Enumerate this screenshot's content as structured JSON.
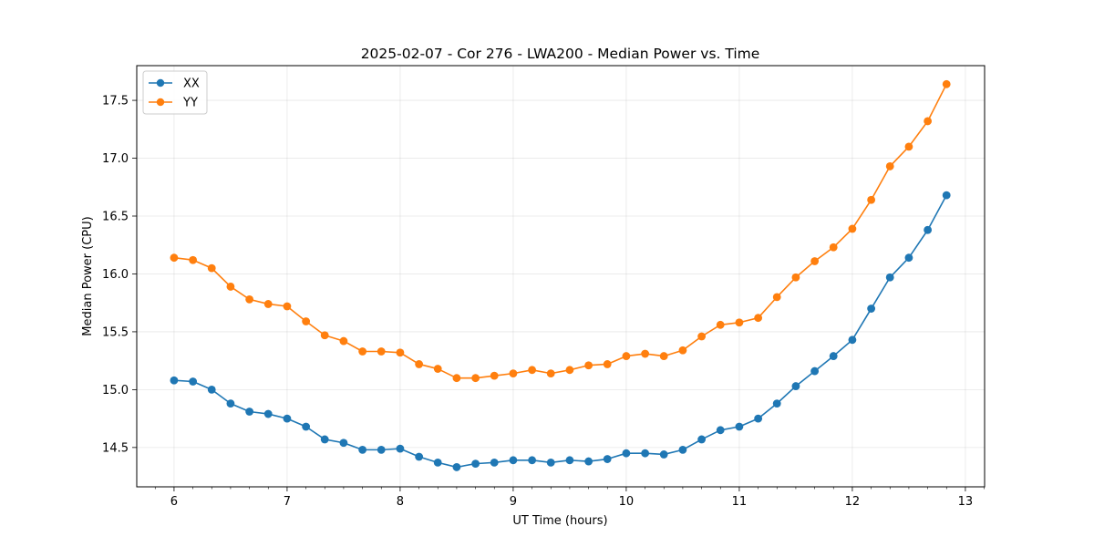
{
  "chart_data": {
    "type": "line",
    "title": "2025-02-07 - Cor 276 - LWA200 - Median Power vs. Time",
    "xlabel": "UT Time (hours)",
    "ylabel": "Median Power (CPU)",
    "xlim": [
      5.67,
      13.17
    ],
    "ylim": [
      14.16,
      17.8
    ],
    "xticks": [
      6,
      7,
      8,
      9,
      10,
      11,
      12,
      13
    ],
    "xtick_labels": [
      "6",
      "7",
      "8",
      "9",
      "10",
      "11",
      "12",
      "13"
    ],
    "yticks": [
      14.5,
      15.0,
      15.5,
      16.0,
      16.5,
      17.0,
      17.5
    ],
    "ytick_labels": [
      "14.5",
      "15.0",
      "15.5",
      "16.0",
      "16.5",
      "17.0",
      "17.5"
    ],
    "grid": true,
    "legend_position": "top-left",
    "x": [
      6.0,
      6.167,
      6.333,
      6.5,
      6.667,
      6.833,
      7.0,
      7.167,
      7.333,
      7.5,
      7.667,
      7.833,
      8.0,
      8.167,
      8.333,
      8.5,
      8.667,
      8.833,
      9.0,
      9.167,
      9.333,
      9.5,
      9.667,
      9.833,
      10.0,
      10.167,
      10.333,
      10.5,
      10.667,
      10.833,
      11.0,
      11.167,
      11.333,
      11.5,
      11.667,
      11.833,
      12.0,
      12.167,
      12.333,
      12.5,
      12.667,
      12.833
    ],
    "series": [
      {
        "name": "XX",
        "color": "#1f77b4",
        "values": [
          15.08,
          15.07,
          15.0,
          14.88,
          14.81,
          14.79,
          14.75,
          14.68,
          14.57,
          14.54,
          14.48,
          14.48,
          14.49,
          14.42,
          14.37,
          14.33,
          14.36,
          14.37,
          14.39,
          14.39,
          14.37,
          14.39,
          14.38,
          14.4,
          14.45,
          14.45,
          14.44,
          14.48,
          14.57,
          14.65,
          14.68,
          14.75,
          14.88,
          15.03,
          15.16,
          15.29,
          15.43,
          15.7,
          15.97,
          16.14,
          16.38,
          16.68
        ]
      },
      {
        "name": "YY",
        "color": "#ff7f0e",
        "values": [
          16.14,
          16.12,
          16.05,
          15.89,
          15.78,
          15.74,
          15.72,
          15.59,
          15.47,
          15.42,
          15.33,
          15.33,
          15.32,
          15.22,
          15.18,
          15.1,
          15.1,
          15.12,
          15.14,
          15.17,
          15.14,
          15.17,
          15.21,
          15.22,
          15.29,
          15.31,
          15.29,
          15.34,
          15.46,
          15.56,
          15.58,
          15.62,
          15.8,
          15.97,
          16.11,
          16.23,
          16.39,
          16.64,
          16.93,
          17.1,
          17.32,
          17.64
        ]
      }
    ]
  }
}
